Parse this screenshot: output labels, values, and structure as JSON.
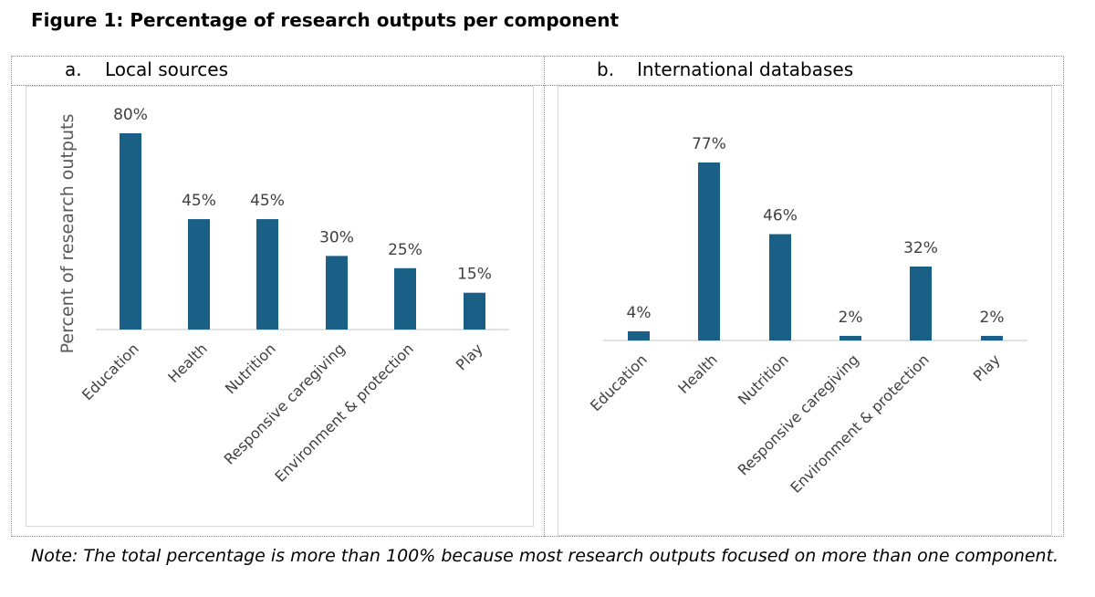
{
  "figure_title": "Figure 1: Percentage of research outputs per component",
  "note": "Note: The total percentage is more than 100% because most research outputs focused on more than one component.",
  "bar_color": "#1a5f85",
  "chart_data": [
    {
      "type": "bar",
      "panel_letter": "a.",
      "panel_title": "Local sources",
      "ylabel": "Percent of research outputs",
      "categories": [
        "Education",
        "Health",
        "Nutrition",
        "Responsive caregiving",
        "Environment & protection",
        "Play"
      ],
      "values": [
        80,
        45,
        45,
        30,
        25,
        15
      ],
      "value_labels": [
        "80%",
        "45%",
        "45%",
        "30%",
        "25%",
        "15%"
      ],
      "ylim": [
        0,
        80
      ],
      "grid": false,
      "legend": "none"
    },
    {
      "type": "bar",
      "panel_letter": "b.",
      "panel_title": "International databases",
      "ylabel": "",
      "categories": [
        "Education",
        "Health",
        "Nutrition",
        "Responsive caregiving",
        "Environment & protection",
        "Play"
      ],
      "values": [
        4,
        77,
        46,
        2,
        32,
        2
      ],
      "value_labels": [
        "4%",
        "77%",
        "46%",
        "2%",
        "32%",
        "2%"
      ],
      "ylim": [
        0,
        77
      ],
      "grid": false,
      "legend": "none"
    }
  ]
}
